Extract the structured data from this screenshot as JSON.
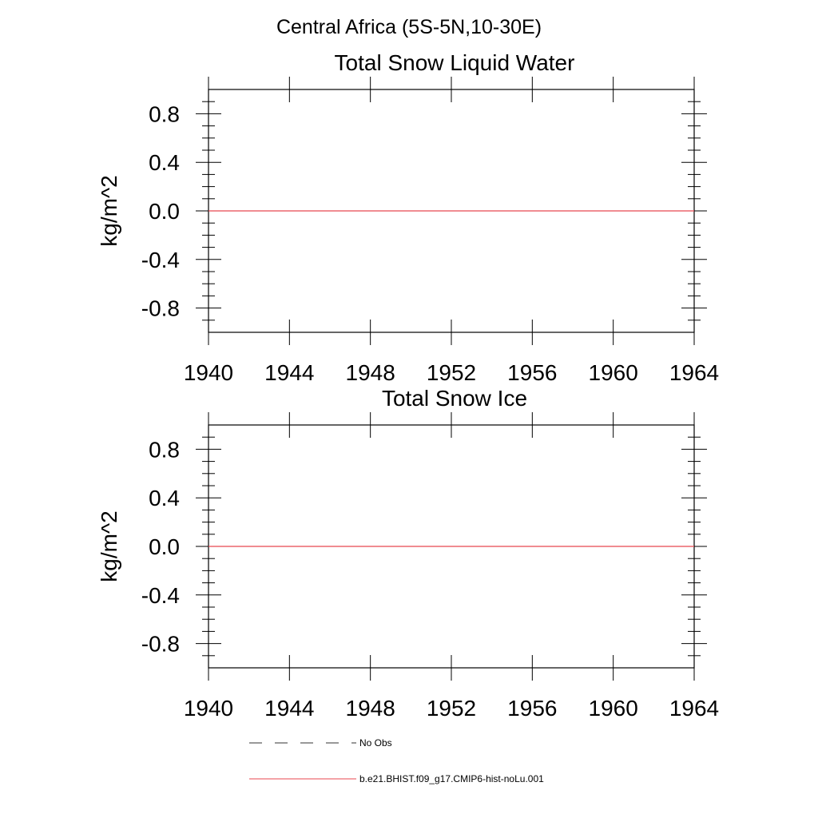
{
  "figure": {
    "main_title": "Central Africa (5S-5N,10-30E)"
  },
  "chart_data": [
    {
      "type": "line",
      "title": "Total Snow Liquid Water",
      "xlabel": "",
      "ylabel": "kg/m^2",
      "xlim": [
        1940,
        1964
      ],
      "ylim": [
        -1.0,
        1.0
      ],
      "x_ticks": [
        1940,
        1944,
        1948,
        1952,
        1956,
        1960,
        1964
      ],
      "x_tick_labels": [
        "1940",
        "1944",
        "1948",
        "1952",
        "1956",
        "1960",
        "1964"
      ],
      "y_ticks": [
        0.8,
        0.4,
        0.0,
        -0.4,
        -0.8
      ],
      "y_tick_labels": [
        "0.8",
        "0.4",
        "0.0",
        "-0.4",
        "-0.8"
      ],
      "grid": false,
      "series": [
        {
          "name": "b.e21.BHIST.f09_g17.CMIP6-hist-noLu.001",
          "color": "#e8474f",
          "x": [
            1940,
            1964
          ],
          "values": [
            0.0,
            0.0
          ]
        }
      ]
    },
    {
      "type": "line",
      "title": "Total Snow Ice",
      "xlabel": "",
      "ylabel": "kg/m^2",
      "xlim": [
        1940,
        1964
      ],
      "ylim": [
        -1.0,
        1.0
      ],
      "x_ticks": [
        1940,
        1944,
        1948,
        1952,
        1956,
        1960,
        1964
      ],
      "x_tick_labels": [
        "1940",
        "1944",
        "1948",
        "1952",
        "1956",
        "1960",
        "1964"
      ],
      "y_ticks": [
        0.8,
        0.4,
        0.0,
        -0.4,
        -0.8
      ],
      "y_tick_labels": [
        "0.8",
        "0.4",
        "0.0",
        "-0.4",
        "-0.8"
      ],
      "grid": false,
      "series": [
        {
          "name": "b.e21.BHIST.f09_g17.CMIP6-hist-noLu.001",
          "color": "#e8474f",
          "x": [
            1940,
            1964
          ],
          "values": [
            0.0,
            0.0
          ]
        }
      ]
    }
  ],
  "legend": {
    "placement": "bottom",
    "items": [
      {
        "label": "No Obs",
        "style": "dashed",
        "color": "#333333"
      },
      {
        "label": "b.e21.BHIST.f09_g17.CMIP6-hist-noLu.001",
        "style": "solid",
        "color": "#e8474f"
      }
    ]
  }
}
